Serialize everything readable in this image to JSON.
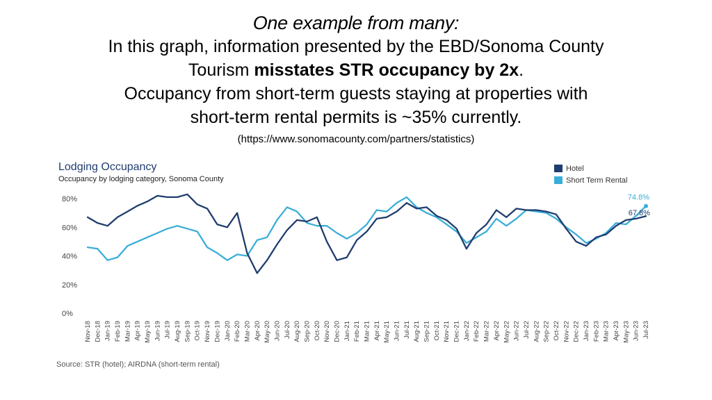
{
  "header": {
    "title": "One example from many:",
    "line1": "In this graph, information presented by the EBD/Sonoma County",
    "line2_pre": "Tourism ",
    "line2_bold": "misstates STR occupancy by 2x",
    "line2_post": ".",
    "line3": "Occupancy from short-term guests staying at properties with",
    "line4": "short-term rental permits is ~35% currently.",
    "source_url": "(https://www.sonomacounty.com/partners/statistics)"
  },
  "chart_data": {
    "type": "line",
    "title": "Lodging Occupancy",
    "subtitle": "Occupancy by lodging category, Sonoma County",
    "source": "Source: STR (hotel); AIRDNA (short-term rental)",
    "ylim": [
      0,
      80
    ],
    "yticks": [
      "0%",
      "20%",
      "40%",
      "60%",
      "80%"
    ],
    "ytick_values": [
      0,
      20,
      40,
      60,
      80
    ],
    "legend_position": "top-right",
    "categories": [
      "Nov-18",
      "Dec-18",
      "Jan-19",
      "Feb-19",
      "Mar-19",
      "Apr-19",
      "May-19",
      "Jun-19",
      "Jul-19",
      "Aug-19",
      "Sep-19",
      "Oct-19",
      "Nov-19",
      "Dec-19",
      "Jan-20",
      "Feb-20",
      "Mar-20",
      "Apr-20",
      "May-20",
      "Jun-20",
      "Jul-20",
      "Aug-20",
      "Sep-20",
      "Oct-20",
      "Nov-20",
      "Dec-20",
      "Jan-21",
      "Feb-21",
      "Mar-21",
      "Apr-21",
      "May-21",
      "Jun-21",
      "Jul-21",
      "Aug-21",
      "Sep-21",
      "Oct-21",
      "Nov-21",
      "Dec-21",
      "Jan-22",
      "Feb-22",
      "Mar-22",
      "Apr-22",
      "May-22",
      "Jun-22",
      "Jul-22",
      "Aug-22",
      "Sep-22",
      "Oct-22",
      "Nov-22",
      "Dec-22",
      "Jan-23",
      "Feb-23",
      "Mar-23",
      "Apr-23",
      "May-23",
      "Jun-23",
      "Jul-23"
    ],
    "series": [
      {
        "name": "Hotel",
        "color": "#1f3d6e",
        "end_label": "67.8%",
        "values": [
          67,
          63,
          61,
          67,
          71,
          75,
          78,
          82,
          81,
          81,
          83,
          76,
          73,
          62,
          60,
          70,
          42,
          28,
          37,
          48,
          58,
          65,
          64,
          67,
          50,
          37,
          39,
          51,
          57,
          66,
          67,
          71,
          77,
          73,
          74,
          68,
          65,
          59,
          45,
          56,
          62,
          72,
          67,
          73,
          72,
          72,
          71,
          69,
          59,
          50,
          47,
          53,
          55,
          61,
          65,
          66,
          67.8
        ]
      },
      {
        "name": "Short Term Rental",
        "color": "#3aaed8",
        "end_label": "74.8%",
        "values": [
          46,
          45,
          37,
          39,
          47,
          50,
          53,
          56,
          59,
          61,
          59,
          57,
          46,
          42,
          37,
          41,
          40,
          51,
          53,
          65,
          74,
          71,
          63,
          61,
          61,
          56,
          52,
          56,
          62,
          72,
          71,
          77,
          81,
          74,
          70,
          67,
          62,
          57,
          49,
          53,
          57,
          66,
          61,
          66,
          72,
          71,
          70,
          66,
          60,
          55,
          49,
          52,
          56,
          63,
          62,
          68,
          74.8
        ]
      }
    ]
  }
}
